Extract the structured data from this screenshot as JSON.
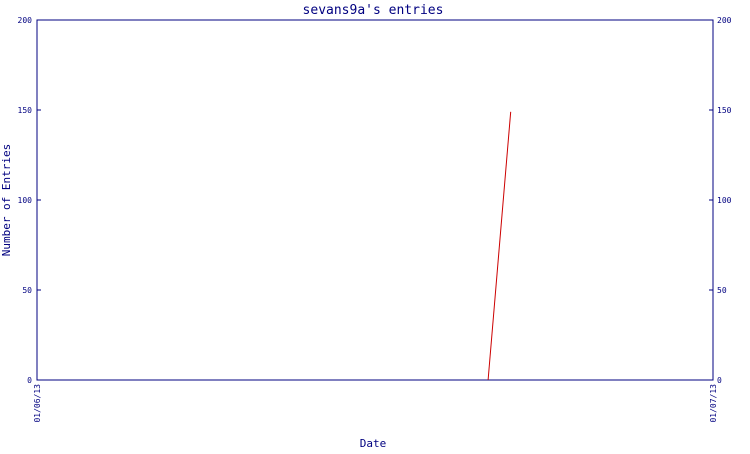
{
  "chart_data": {
    "type": "line",
    "title": "sevans9a's entries",
    "xlabel": "Date",
    "ylabel": "Number of Entries",
    "x_tick_labels": [
      "01/06/13",
      "01/07/13"
    ],
    "y_ticks": [
      0,
      50,
      100,
      150,
      200
    ],
    "ylim": [
      0,
      200
    ],
    "xlim": [
      "01/06/13",
      "01/07/13"
    ],
    "grid": false,
    "dual_y_axis": true,
    "series": [
      {
        "color": "#cc0000",
        "points": [
          {
            "x": "01/06/13 16:01",
            "y": 0
          },
          {
            "x": "01/06/13 16:49",
            "y": 149
          }
        ]
      }
    ]
  },
  "colors": {
    "axis": "#000080",
    "text": "#000080",
    "line": "#cc0000",
    "background": "#ffffff"
  }
}
